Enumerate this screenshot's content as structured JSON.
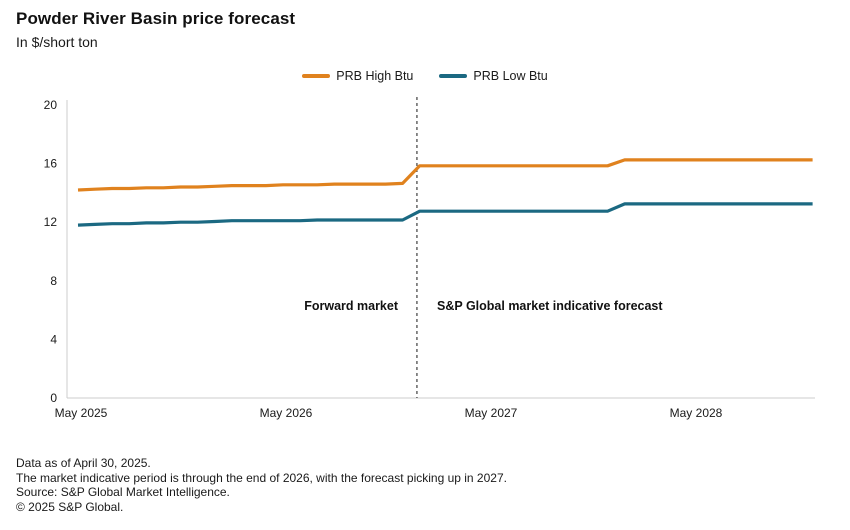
{
  "header": {
    "title": "Powder River Basin price forecast",
    "subtitle": "In $/short ton"
  },
  "legend": [
    {
      "label": "PRB High Btu",
      "color": "#E0821E"
    },
    {
      "label": "PRB Low Btu",
      "color": "#1B6982"
    }
  ],
  "annotations": {
    "forward_market": "Forward market",
    "forecast": "S&P Global market indicative forecast"
  },
  "footer": {
    "line1": "Data as of April 30, 2025.",
    "line2": "The market indicative period is through the end of 2026, with the forecast picking up in 2027.",
    "line3": "Source: S&P Global Market Intelligence.",
    "line4": "© 2025 S&P Global."
  },
  "chart_data": {
    "type": "line",
    "title": "Powder River Basin price forecast",
    "ylabel": "In $/short ton",
    "ylim": [
      0,
      20
    ],
    "y_ticks": [
      0,
      4,
      8,
      12,
      16,
      20
    ],
    "x_frequency": "monthly",
    "x_start": "May 2025",
    "x_end": "Dec 2028",
    "x_tick_indices": [
      0,
      12,
      24,
      36
    ],
    "x_tick_labels": [
      "May 2025",
      "May 2026",
      "May 2027",
      "May 2028"
    ],
    "divider_index": 19.84,
    "divider_color": "#3f3f3f",
    "axis_color": "#cccccc",
    "grid": false,
    "legend_position": "top-center",
    "series": [
      {
        "name": "PRB High Btu",
        "color": "#E0821E",
        "values": [
          14.2,
          14.25,
          14.3,
          14.3,
          14.35,
          14.35,
          14.4,
          14.4,
          14.45,
          14.5,
          14.5,
          14.5,
          14.55,
          14.55,
          14.55,
          14.6,
          14.6,
          14.6,
          14.6,
          14.65,
          15.85,
          15.85,
          15.85,
          15.85,
          15.85,
          15.85,
          15.85,
          15.85,
          15.85,
          15.85,
          15.85,
          15.85,
          16.25,
          16.25,
          16.25,
          16.25,
          16.25,
          16.25,
          16.25,
          16.25,
          16.25,
          16.25,
          16.25,
          16.25
        ]
      },
      {
        "name": "PRB Low Btu",
        "color": "#1B6982",
        "values": [
          11.8,
          11.85,
          11.9,
          11.9,
          11.95,
          11.95,
          12.0,
          12.0,
          12.05,
          12.1,
          12.1,
          12.1,
          12.1,
          12.1,
          12.15,
          12.15,
          12.15,
          12.15,
          12.15,
          12.15,
          12.75,
          12.75,
          12.75,
          12.75,
          12.75,
          12.75,
          12.75,
          12.75,
          12.75,
          12.75,
          12.75,
          12.75,
          13.25,
          13.25,
          13.25,
          13.25,
          13.25,
          13.25,
          13.25,
          13.25,
          13.25,
          13.25,
          13.25,
          13.25
        ]
      }
    ]
  }
}
